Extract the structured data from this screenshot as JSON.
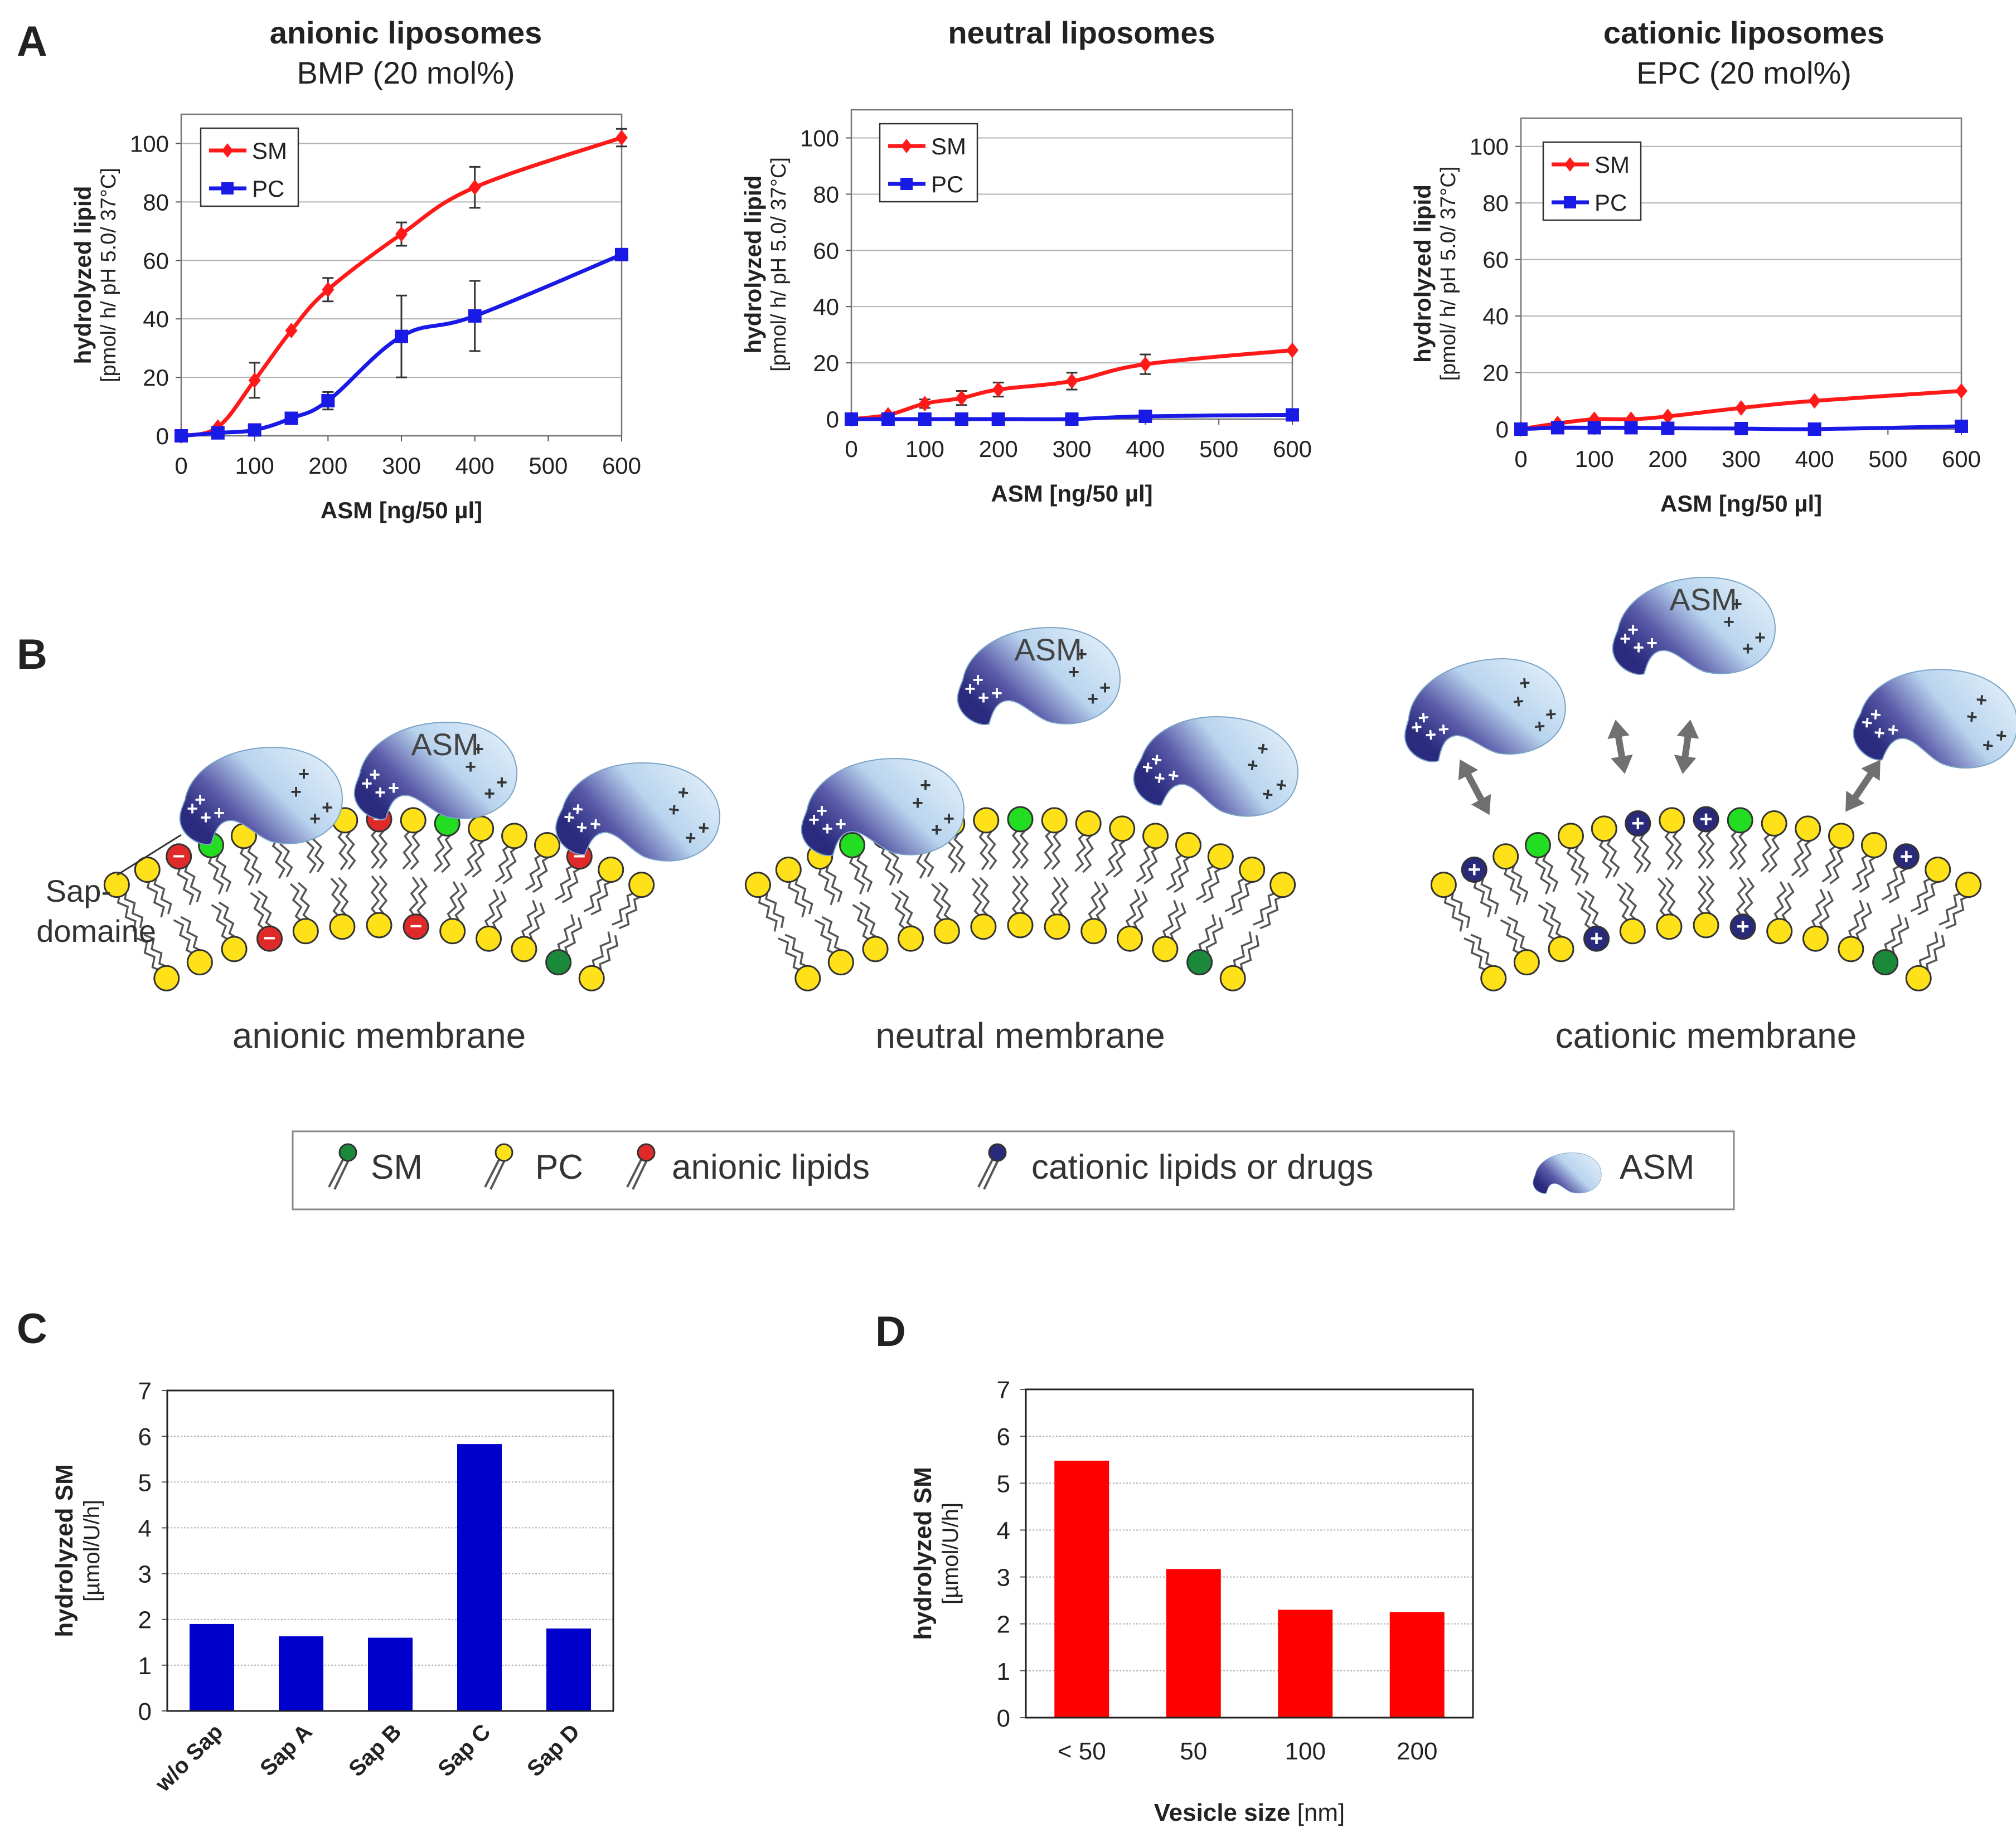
{
  "panels": {
    "A": "A",
    "B": "B",
    "C": "C",
    "D": "D"
  },
  "colors": {
    "sm": "#ff1a1a",
    "pc": "#1a1ae6",
    "bar_c": "#0000cc",
    "bar_d": "#ff0000",
    "error": "#333333",
    "grid": "#b0b0b0",
    "sm_head": "#22dd22",
    "sm_head_dark": "#1a8a3a",
    "pc_head": "#ffe11a",
    "anionic_head": "#e02a2a",
    "cationic_head": "#2a2a7a",
    "asm_light": "#d6e9f7",
    "asm_dark": "#2e2e86",
    "arrow": "#707070"
  },
  "chart_data": [
    {
      "id": "A1",
      "type": "line",
      "title": "anionic liposomes",
      "subtitle": "BMP (20 mol%)",
      "xlabel": "ASM [ng/50 µl]",
      "ylabel_bold": "hydrolyzed lipid",
      "ylabel_sub": "[pmol/ h/ pH 5.0/ 37°C]",
      "xlim": [
        0,
        600
      ],
      "ylim": [
        0,
        110
      ],
      "xticks": [
        "0",
        "100",
        "200",
        "300",
        "400",
        "500",
        "600"
      ],
      "yticks": [
        "0",
        "20",
        "40",
        "60",
        "80",
        "100"
      ],
      "legend": [
        "SM",
        "PC"
      ],
      "series": [
        {
          "name": "SM",
          "x": [
            0,
            50,
            100,
            150,
            200,
            300,
            400,
            600
          ],
          "y": [
            0,
            3,
            19,
            36,
            50,
            69,
            85,
            102
          ],
          "err": [
            0,
            0,
            6,
            0,
            4,
            4,
            7,
            3
          ]
        },
        {
          "name": "PC",
          "x": [
            0,
            50,
            100,
            150,
            200,
            300,
            400,
            600
          ],
          "y": [
            0,
            1,
            2,
            6,
            12,
            34,
            41,
            62
          ],
          "err": [
            0,
            0,
            0,
            0,
            3,
            14,
            12,
            0
          ]
        }
      ]
    },
    {
      "id": "A2",
      "type": "line",
      "title": "neutral liposomes",
      "xlabel": "ASM [ng/50 µl]",
      "ylabel_bold": "hydrolyzed lipid",
      "ylabel_sub": "[pmol/ h/ pH 5.0/ 37°C]",
      "xlim": [
        0,
        600
      ],
      "ylim": [
        0,
        110
      ],
      "xticks": [
        "0",
        "100",
        "200",
        "300",
        "400",
        "500",
        "600"
      ],
      "yticks": [
        "0",
        "20",
        "40",
        "60",
        "80",
        "100"
      ],
      "legend": [
        "SM",
        "PC"
      ],
      "series": [
        {
          "name": "SM",
          "x": [
            0,
            50,
            100,
            150,
            200,
            300,
            400,
            600
          ],
          "y": [
            0,
            1.5,
            5.5,
            7.5,
            10.5,
            13.5,
            19.5,
            24.5
          ],
          "err": [
            0,
            0,
            1.5,
            2.5,
            2.5,
            3,
            3.5,
            0
          ]
        },
        {
          "name": "PC",
          "x": [
            0,
            50,
            100,
            150,
            200,
            300,
            400,
            600
          ],
          "y": [
            0,
            0,
            0,
            0,
            0,
            0,
            1,
            1.5
          ],
          "err": [
            0,
            0,
            0,
            0,
            0,
            0,
            0,
            0
          ]
        }
      ]
    },
    {
      "id": "A3",
      "type": "line",
      "title": "cationic liposomes",
      "subtitle": "EPC  (20 mol%)",
      "xlabel": "ASM [ng/50 µl]",
      "ylabel_bold": "hydrolyzed lipid",
      "ylabel_sub": "[pmol/ h/ pH 5.0/ 37°C]",
      "xlim": [
        0,
        600
      ],
      "ylim": [
        0,
        110
      ],
      "xticks": [
        "0",
        "100",
        "200",
        "300",
        "400",
        "500",
        "600"
      ],
      "yticks": [
        "0",
        "20",
        "40",
        "60",
        "80",
        "100"
      ],
      "legend": [
        "SM",
        "PC"
      ],
      "series": [
        {
          "name": "SM",
          "x": [
            0,
            50,
            100,
            150,
            200,
            300,
            400,
            600
          ],
          "y": [
            0,
            2,
            3.5,
            3.5,
            4.5,
            7.5,
            10,
            13.5
          ],
          "err": [
            0,
            0,
            0,
            0,
            0,
            0,
            0,
            0
          ]
        },
        {
          "name": "PC",
          "x": [
            0,
            50,
            100,
            150,
            200,
            300,
            400,
            600
          ],
          "y": [
            0,
            0.5,
            0.5,
            0.5,
            0.3,
            0.2,
            0,
            1
          ],
          "err": [
            0,
            0,
            0,
            0,
            0,
            0,
            0,
            0
          ]
        }
      ]
    },
    {
      "id": "C",
      "type": "bar",
      "categories": [
        "w/o Sap",
        "Sap A",
        "Sap B",
        "Sap C",
        "Sap D"
      ],
      "values": [
        1.9,
        1.63,
        1.6,
        5.83,
        1.8
      ],
      "ylim": [
        0,
        7
      ],
      "yticks": [
        "0",
        "1",
        "2",
        "3",
        "4",
        "5",
        "6",
        "7"
      ],
      "ylabel_bold": "hydrolyzed SM",
      "ylabel_sub": "[µmol/U/h]",
      "xlabel_bold": "",
      "xlabel_sub": ""
    },
    {
      "id": "D",
      "type": "bar",
      "categories": [
        "< 50",
        "50",
        "100",
        "200"
      ],
      "values": [
        5.48,
        3.17,
        2.3,
        2.25
      ],
      "ylim": [
        0,
        7
      ],
      "yticks": [
        "0",
        "1",
        "2",
        "3",
        "4",
        "5",
        "6",
        "7"
      ],
      "ylabel_bold": "hydrolyzed SM",
      "ylabel_sub": "[µmol/U/h]",
      "xlabel_bold": "Vesicle size",
      "xlabel_sub": "[nm]"
    }
  ],
  "diagram": {
    "asm_label": "ASM",
    "plus": "+",
    "minus": "−",
    "sap_label_1": "Sap-",
    "sap_label_2": "domaine",
    "membranes": [
      "anionic membrane",
      "neutral membrane",
      "cationic membrane"
    ]
  },
  "legend_box": {
    "sm": "SM",
    "pc": "PC",
    "anionic": "anionic lipids",
    "cationic": "cationic lipids or drugs",
    "asm": "ASM"
  }
}
